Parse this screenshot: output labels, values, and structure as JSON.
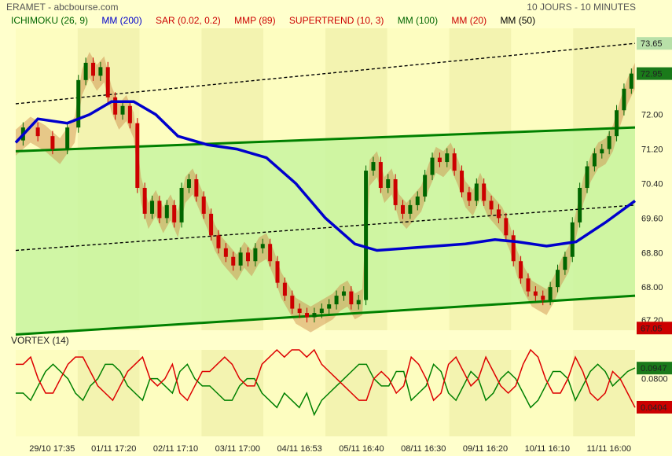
{
  "header": {
    "title": "ERAMET - abcbourse.com",
    "period": "10 JOURS - 10 MINUTES"
  },
  "legend": [
    {
      "label": "ICHIMOKU (26, 9)",
      "color": "#006600"
    },
    {
      "label": "MM (200)",
      "color": "#0000cc"
    },
    {
      "label": "SAR (0.02, 0.2)",
      "color": "#cc0000"
    },
    {
      "label": "MMP (89)",
      "color": "#cc0000"
    },
    {
      "label": "SUPERTREND (10, 3)",
      "color": "#cc0000"
    },
    {
      "label": "MM (100)",
      "color": "#006600"
    },
    {
      "label": "MM (20)",
      "color": "#cc0000"
    },
    {
      "label": "MM (50)",
      "color": "#000000"
    }
  ],
  "vortex_title": "VORTEX (14)",
  "chart_data": [
    {
      "type": "candlestick",
      "title": "ERAMET",
      "x_ticks": [
        "29/10 17:35",
        "01/11 17:20",
        "02/11 17:10",
        "03/11 17:00",
        "04/11 16:53",
        "05/11 16:40",
        "08/11 16:30",
        "09/11 16:20",
        "10/11 16:10",
        "11/11 16:00"
      ],
      "y_ticks": [
        68.0,
        68.8,
        69.6,
        70.4,
        71.2,
        72.0
      ],
      "ylim": [
        67.0,
        74.0
      ],
      "price_labels": {
        "high_line": "73.65",
        "last": "72.95",
        "low": "67.05",
        "partial": "67.20"
      },
      "colors": {
        "up": "#006600",
        "down": "#cc0000",
        "ma200": "#0000cc",
        "channel": "#008000",
        "cloud": "#cc8844"
      },
      "close_path": [
        [
          0,
          71.4
        ],
        [
          2,
          71.7
        ],
        [
          4,
          71.5
        ],
        [
          6,
          71.2
        ],
        [
          8,
          71.7
        ],
        [
          9,
          72.8
        ],
        [
          10,
          73.2
        ],
        [
          11,
          72.9
        ],
        [
          12,
          73.1
        ],
        [
          13,
          72.4
        ],
        [
          14,
          72.0
        ],
        [
          15,
          72.2
        ],
        [
          16,
          71.8
        ],
        [
          17,
          70.3
        ],
        [
          18,
          69.7
        ],
        [
          19,
          70.0
        ],
        [
          20,
          69.6
        ],
        [
          21,
          69.9
        ],
        [
          22,
          69.5
        ],
        [
          23,
          70.3
        ],
        [
          24,
          70.5
        ],
        [
          25,
          70.1
        ],
        [
          26,
          69.7
        ],
        [
          27,
          69.2
        ],
        [
          28,
          68.9
        ],
        [
          29,
          68.7
        ],
        [
          30,
          68.5
        ],
        [
          31,
          68.8
        ],
        [
          32,
          68.6
        ],
        [
          33,
          68.9
        ],
        [
          34,
          69.0
        ],
        [
          35,
          68.6
        ],
        [
          36,
          68.1
        ],
        [
          37,
          67.8
        ],
        [
          38,
          67.5
        ],
        [
          39,
          67.4
        ],
        [
          40,
          67.3
        ],
        [
          41,
          67.4
        ],
        [
          42,
          67.5
        ],
        [
          43,
          67.6
        ],
        [
          44,
          67.8
        ],
        [
          45,
          67.9
        ],
        [
          46,
          67.6
        ],
        [
          47,
          67.7
        ],
        [
          48,
          70.7
        ],
        [
          49,
          70.9
        ],
        [
          50,
          70.3
        ],
        [
          51,
          70.5
        ],
        [
          52,
          69.9
        ],
        [
          53,
          69.7
        ],
        [
          54,
          69.9
        ],
        [
          55,
          70.1
        ],
        [
          56,
          70.6
        ],
        [
          57,
          71.0
        ],
        [
          58,
          70.9
        ],
        [
          59,
          71.1
        ],
        [
          60,
          70.7
        ],
        [
          61,
          70.2
        ],
        [
          62,
          70.0
        ],
        [
          63,
          70.4
        ],
        [
          64,
          70.0
        ],
        [
          65,
          69.8
        ],
        [
          66,
          69.6
        ],
        [
          67,
          69.2
        ],
        [
          68,
          68.6
        ],
        [
          69,
          68.2
        ],
        [
          70,
          67.9
        ],
        [
          71,
          67.8
        ],
        [
          72,
          67.7
        ],
        [
          73,
          68.0
        ],
        [
          74,
          68.4
        ],
        [
          75,
          68.7
        ],
        [
          76,
          69.5
        ],
        [
          77,
          70.3
        ],
        [
          78,
          70.8
        ],
        [
          79,
          71.1
        ],
        [
          80,
          71.2
        ],
        [
          81,
          71.5
        ],
        [
          82,
          72.1
        ],
        [
          83,
          72.6
        ],
        [
          84,
          72.95
        ]
      ],
      "ma200": [
        [
          0,
          71.35
        ],
        [
          3,
          71.9
        ],
        [
          7,
          71.8
        ],
        [
          10,
          72.0
        ],
        [
          13,
          72.3
        ],
        [
          16,
          72.3
        ],
        [
          19,
          72.0
        ],
        [
          22,
          71.5
        ],
        [
          26,
          71.3
        ],
        [
          30,
          71.2
        ],
        [
          34,
          71.0
        ],
        [
          38,
          70.4
        ],
        [
          42,
          69.6
        ],
        [
          46,
          69.0
        ],
        [
          49,
          68.85
        ],
        [
          53,
          68.9
        ],
        [
          57,
          68.95
        ],
        [
          61,
          69.0
        ],
        [
          65,
          69.1
        ],
        [
          68,
          69.05
        ],
        [
          72,
          68.95
        ],
        [
          76,
          69.05
        ],
        [
          80,
          69.5
        ],
        [
          84,
          70.0
        ]
      ],
      "channel_upper": {
        "from": 71.15,
        "to": 71.7
      },
      "channel_lower": {
        "from": 66.9,
        "to": 67.8
      },
      "dotted_lines": [
        {
          "from": 72.25,
          "to": 73.65
        },
        {
          "from": 68.85,
          "to": 69.9
        }
      ]
    },
    {
      "type": "line",
      "title": "VORTEX (14)",
      "y_ticks": [
        0.08
      ],
      "ylim": [
        0.0,
        0.12
      ],
      "latest": {
        "vi_plus": "0.0947",
        "vi_minus": "0.0404"
      },
      "colors": {
        "vi_plus": "#008000",
        "vi_minus": "#dd0000"
      },
      "series": [
        {
          "name": "VI+",
          "values": [
            0.06,
            0.06,
            0.05,
            0.07,
            0.09,
            0.1,
            0.09,
            0.08,
            0.06,
            0.05,
            0.07,
            0.08,
            0.1,
            0.1,
            0.09,
            0.07,
            0.06,
            0.05,
            0.08,
            0.08,
            0.07,
            0.06,
            0.09,
            0.1,
            0.08,
            0.07,
            0.07,
            0.06,
            0.05,
            0.05,
            0.07,
            0.08,
            0.08,
            0.06,
            0.05,
            0.04,
            0.06,
            0.05,
            0.04,
            0.06,
            0.03,
            0.05,
            0.06,
            0.07,
            0.08,
            0.09,
            0.1,
            0.1,
            0.08,
            0.07,
            0.07,
            0.09,
            0.09,
            0.05,
            0.06,
            0.07,
            0.1,
            0.09,
            0.06,
            0.05,
            0.07,
            0.09,
            0.08,
            0.05,
            0.06,
            0.08,
            0.09,
            0.08,
            0.06,
            0.04,
            0.05,
            0.07,
            0.09,
            0.09,
            0.08,
            0.05,
            0.07,
            0.09,
            0.1,
            0.09,
            0.07,
            0.08,
            0.09,
            0.095
          ]
        },
        {
          "name": "VI-",
          "values": [
            0.1,
            0.1,
            0.11,
            0.08,
            0.06,
            0.06,
            0.08,
            0.1,
            0.11,
            0.11,
            0.09,
            0.07,
            0.06,
            0.05,
            0.07,
            0.09,
            0.1,
            0.11,
            0.08,
            0.07,
            0.08,
            0.1,
            0.06,
            0.05,
            0.07,
            0.09,
            0.09,
            0.1,
            0.11,
            0.1,
            0.08,
            0.07,
            0.07,
            0.1,
            0.11,
            0.12,
            0.11,
            0.12,
            0.12,
            0.11,
            0.12,
            0.1,
            0.09,
            0.08,
            0.07,
            0.06,
            0.05,
            0.05,
            0.08,
            0.09,
            0.08,
            0.06,
            0.07,
            0.11,
            0.1,
            0.08,
            0.05,
            0.06,
            0.1,
            0.11,
            0.09,
            0.07,
            0.08,
            0.11,
            0.09,
            0.07,
            0.06,
            0.07,
            0.1,
            0.12,
            0.11,
            0.08,
            0.06,
            0.06,
            0.08,
            0.11,
            0.09,
            0.06,
            0.05,
            0.06,
            0.09,
            0.08,
            0.06,
            0.04
          ]
        }
      ]
    }
  ]
}
